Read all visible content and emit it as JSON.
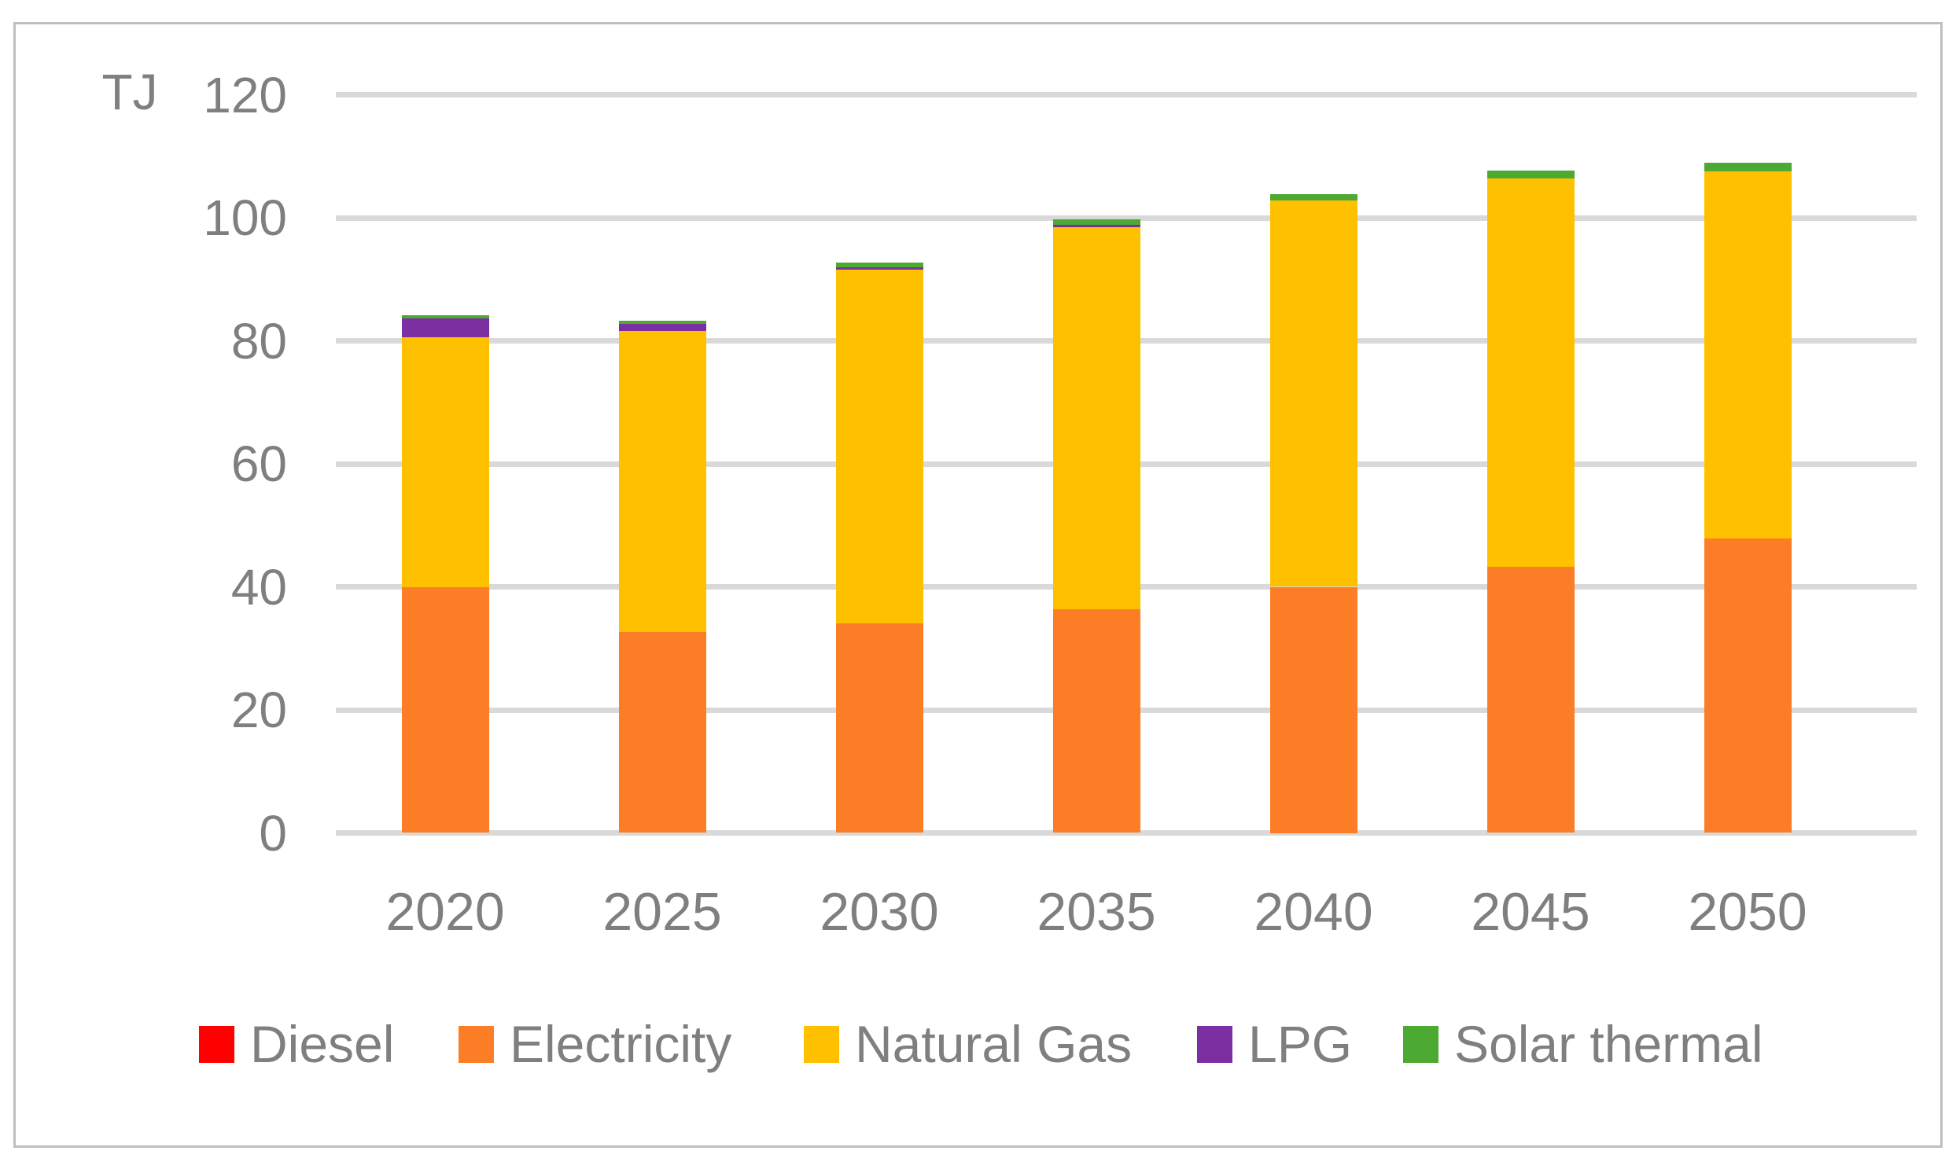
{
  "chart_data": {
    "type": "bar",
    "stacked": true,
    "title": "",
    "unit_label": "TJ",
    "xlabel": "",
    "ylabel": "TJ",
    "categories": [
      "2020",
      "2025",
      "2030",
      "2035",
      "2040",
      "2045",
      "2050"
    ],
    "series": [
      {
        "name": "Diesel",
        "color": "#ff0000",
        "values": [
          0,
          0,
          0,
          0,
          0,
          0,
          0
        ]
      },
      {
        "name": "Electricity",
        "color": "#fb7d26",
        "values": [
          39.9,
          32.6,
          34.0,
          36.3,
          40.0,
          43.3,
          47.9
        ]
      },
      {
        "name": "Natural Gas",
        "color": "#ffc000",
        "values": [
          40.7,
          49.0,
          57.6,
          62.2,
          62.8,
          63.1,
          59.6
        ]
      },
      {
        "name": "LPG",
        "color": "#7b2fa0",
        "values": [
          3.0,
          1.2,
          0.4,
          0.3,
          0,
          0,
          0
        ]
      },
      {
        "name": "Solar thermal",
        "color": "#4ca932",
        "values": [
          0.5,
          0.5,
          0.7,
          1.0,
          1.0,
          1.3,
          1.4
        ]
      }
    ],
    "totals": [
      84.1,
      83.3,
      92.7,
      99.8,
      103.8,
      107.7,
      108.9
    ],
    "ylim": [
      0,
      120
    ],
    "yticks": [
      0,
      20,
      40,
      60,
      80,
      100,
      120
    ],
    "grid": true,
    "gridline_color": "#d9d9d9",
    "text_color": "#7f7f7f",
    "legend_position": "bottom"
  }
}
